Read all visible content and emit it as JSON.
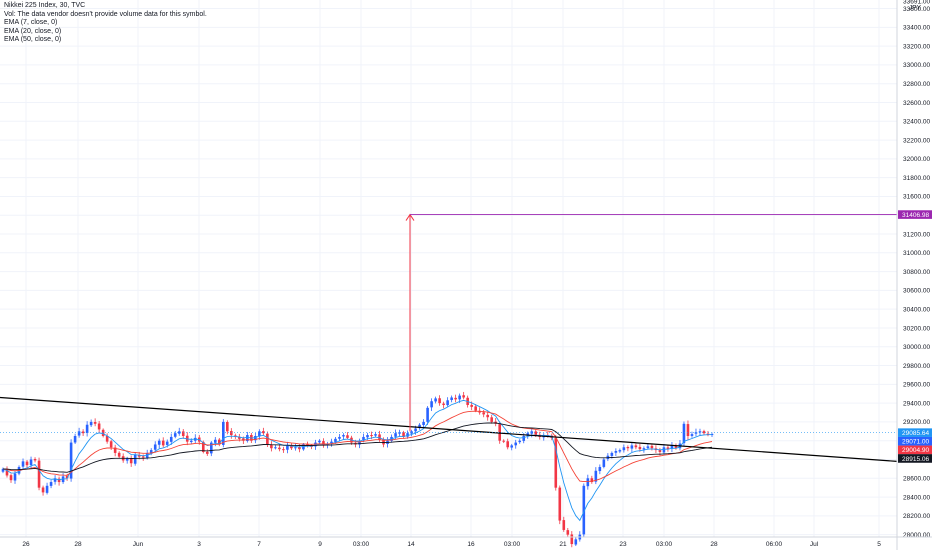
{
  "legend": {
    "symbol_line": "Nikkei 225 Index, 30, TVC",
    "vol_line": "Vol: The data vendor doesn't provide volume data for this symbol.",
    "ema7": "EMA (7, close, 0)",
    "ema20": "EMA (20, close, 0)",
    "ema50": "EMA (50, close, 0)"
  },
  "currency": "JPY",
  "colors": {
    "up": "#2962ff",
    "down": "#f23645",
    "ema7": "#2196f3",
    "ema20": "#f44336",
    "ema50": "#131722",
    "trendline": "#000000",
    "arrow": "#f23645",
    "target": "#9c27b0",
    "grid": "#f0f3fa"
  },
  "chart_data": {
    "type": "candlestick",
    "ylim": [
      28000,
      33700
    ],
    "y_ticks": [
      "33600.00",
      "33400.00",
      "33200.00",
      "33000.00",
      "32800.00",
      "32600.00",
      "32400.00",
      "32200.00",
      "32000.00",
      "31800.00",
      "31600.00",
      "31400.00",
      "31200.00",
      "31000.00",
      "30800.00",
      "30600.00",
      "30400.00",
      "30200.00",
      "30000.00",
      "29800.00",
      "29600.00",
      "29400.00",
      "29200.00",
      "29000.00",
      "28800.00",
      "28600.00",
      "28400.00",
      "28200.00",
      "28000.00"
    ],
    "y_top_partial": "33691.00",
    "x_ticks": [
      "26",
      "28",
      "Jun",
      "3",
      "7",
      "9",
      "03:00",
      "14",
      "16",
      "03:00",
      "21",
      "23",
      "03:00",
      "28",
      "06:00",
      "Jul",
      "5"
    ],
    "price_badges": [
      {
        "label": "31406.98",
        "value": 31406.98,
        "color": "#9c27b0"
      },
      {
        "label": "29085.64",
        "value": 29085.64,
        "color": "#2196f3"
      },
      {
        "label": "29071.00",
        "value": 29071.0,
        "color": "#2962ff"
      },
      {
        "label": "29004.90",
        "value": 29004.9,
        "color": "#f23645"
      },
      {
        "label": "28915.06",
        "value": 28915.06,
        "color": "#131722"
      }
    ],
    "trendline": {
      "start": 29460,
      "end": 28780
    },
    "projection": {
      "base": 29100,
      "target": 31406.98
    },
    "closes": [
      28700,
      28630,
      28580,
      28650,
      28720,
      28780,
      28740,
      28800,
      28790,
      28500,
      28450,
      28520,
      28560,
      28600,
      28560,
      28620,
      28600,
      28980,
      29050,
      29100,
      29080,
      29170,
      29200,
      29180,
      29120,
      29050,
      28990,
      28930,
      28870,
      28830,
      28790,
      28810,
      28760,
      28850,
      28830,
      28820,
      28870,
      28900,
      28960,
      29000,
      28950,
      28990,
      29040,
      29080,
      29100,
      29050,
      28990,
      29000,
      29030,
      28990,
      28880,
      28860,
      28980,
      29010,
      28960,
      29200,
      29100,
      29060,
      29040,
      29020,
      29000,
      29060,
      29000,
      29050,
      29100,
      29080,
      28960,
      28920,
      28930,
      28910,
      28900,
      28950,
      28920,
      28930,
      28910,
      28960,
      28950,
      28940,
      28980,
      29000,
      28950,
      28970,
      28990,
      29020,
      29040,
      29060,
      29030,
      28980,
      28960,
      29000,
      29040,
      29060,
      29050,
      29070,
      29010,
      28960,
      29000,
      29040,
      29080,
      29090,
      29040,
      29080,
      29100,
      29130,
      29170,
      29200,
      29350,
      29420,
      29450,
      29400,
      29380,
      29430,
      29460,
      29440,
      29480,
      29460,
      29380,
      29360,
      29320,
      29300,
      29280,
      29250,
      29200,
      29180,
      29000,
      28990,
      28930,
      28950,
      28980,
      29000,
      29050,
      29080,
      29100,
      29060,
      29040,
      29060,
      29050,
      29030,
      28500,
      28150,
      28050,
      28000,
      27900,
      27950,
      28000,
      28520,
      28600,
      28560,
      28680,
      28720,
      28800,
      28840,
      28870,
      28890,
      28900,
      28930,
      28920,
      28950,
      28930,
      28910,
      28920,
      28940,
      28920,
      28900,
      28880,
      28930,
      28910,
      28950,
      28920,
      28970,
      29180,
      29050,
      29070,
      29090,
      29100,
      29080,
      29070,
      29071
    ]
  }
}
